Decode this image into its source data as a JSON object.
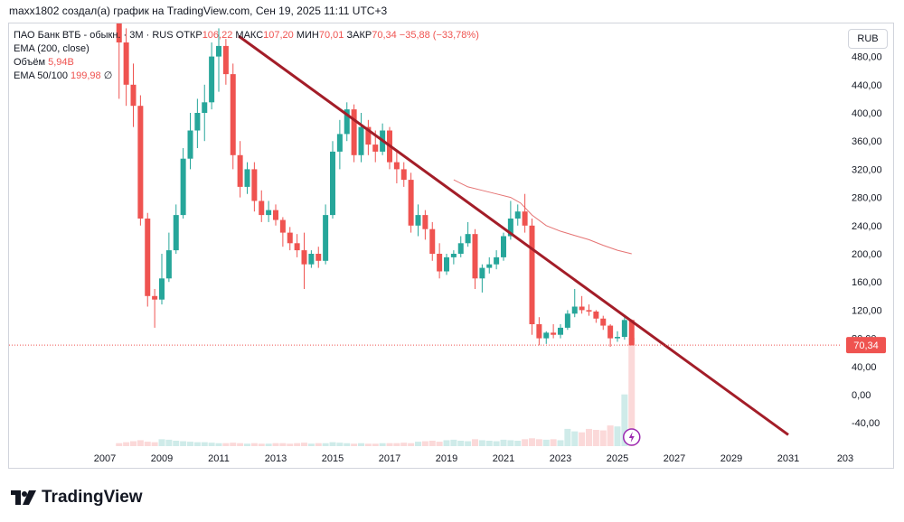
{
  "header": {
    "attribution": "maxx1802 создал(а) график на TradingView.com, Сен 19, 2025 11:11 UTC+3"
  },
  "legend": {
    "symbol": "ПАО Банк ВТБ - обыкн.",
    "interval": "3M",
    "exchange": "RUS",
    "open_label": "ОТКР",
    "open_value": "106,22",
    "high_label": "МАКС",
    "high_value": "107,20",
    "low_label": "МИН",
    "low_value": "70,01",
    "close_label": "ЗАКР",
    "close_value": "70,34",
    "change": "−35,88 (−33,78%)",
    "ema200_label": "EMA (200, close)",
    "volume_label": "Объём",
    "volume_value": "5,94B",
    "ema50_label": "EMA 50/100",
    "ema50_value": "199,98",
    "ema50_extra": "∅"
  },
  "currency_button": "RUB",
  "price_tag": "70,34",
  "logo_text": "TradingView",
  "colors": {
    "up": "#26a69a",
    "down": "#ef5350",
    "trendline": "#a31d28",
    "ema": "#e57373"
  },
  "chart_data": {
    "type": "candlestick",
    "title": "ПАО Банк ВТБ - обыкн. · 3M · RUS",
    "ylim": [
      -60,
      500
    ],
    "y_ticks": [
      "480,00",
      "440,00",
      "400,00",
      "360,00",
      "320,00",
      "280,00",
      "240,00",
      "200,00",
      "160,00",
      "120,00",
      "80,00",
      "40,00",
      "0,00",
      "-40,00"
    ],
    "x_ticks": [
      "2007",
      "2009",
      "2011",
      "2013",
      "2015",
      "2017",
      "2019",
      "2021",
      "2023",
      "2025",
      "2027",
      "2029",
      "2031",
      "203"
    ],
    "candles": [
      {
        "t": 2007.5,
        "o": 620,
        "h": 640,
        "l": 420,
        "c": 500
      },
      {
        "t": 2007.75,
        "o": 500,
        "h": 520,
        "l": 410,
        "c": 440
      },
      {
        "t": 2008.0,
        "o": 440,
        "h": 470,
        "l": 380,
        "c": 410
      },
      {
        "t": 2008.25,
        "o": 410,
        "h": 425,
        "l": 240,
        "c": 250
      },
      {
        "t": 2008.5,
        "o": 250,
        "h": 258,
        "l": 125,
        "c": 140
      },
      {
        "t": 2008.75,
        "o": 140,
        "h": 150,
        "l": 95,
        "c": 135
      },
      {
        "t": 2009.0,
        "o": 135,
        "h": 200,
        "l": 128,
        "c": 165
      },
      {
        "t": 2009.25,
        "o": 165,
        "h": 230,
        "l": 160,
        "c": 205
      },
      {
        "t": 2009.5,
        "o": 205,
        "h": 270,
        "l": 200,
        "c": 255
      },
      {
        "t": 2009.75,
        "o": 255,
        "h": 350,
        "l": 250,
        "c": 335
      },
      {
        "t": 2010.0,
        "o": 335,
        "h": 400,
        "l": 320,
        "c": 375
      },
      {
        "t": 2010.25,
        "o": 375,
        "h": 420,
        "l": 350,
        "c": 400
      },
      {
        "t": 2010.5,
        "o": 400,
        "h": 440,
        "l": 360,
        "c": 415
      },
      {
        "t": 2010.75,
        "o": 415,
        "h": 500,
        "l": 405,
        "c": 480
      },
      {
        "t": 2011.0,
        "o": 480,
        "h": 520,
        "l": 430,
        "c": 495
      },
      {
        "t": 2011.25,
        "o": 495,
        "h": 505,
        "l": 440,
        "c": 455
      },
      {
        "t": 2011.5,
        "o": 455,
        "h": 470,
        "l": 320,
        "c": 340
      },
      {
        "t": 2011.75,
        "o": 340,
        "h": 360,
        "l": 280,
        "c": 295
      },
      {
        "t": 2012.0,
        "o": 295,
        "h": 330,
        "l": 285,
        "c": 320
      },
      {
        "t": 2012.25,
        "o": 320,
        "h": 330,
        "l": 260,
        "c": 275
      },
      {
        "t": 2012.5,
        "o": 275,
        "h": 290,
        "l": 245,
        "c": 255
      },
      {
        "t": 2012.75,
        "o": 255,
        "h": 275,
        "l": 245,
        "c": 262
      },
      {
        "t": 2013.0,
        "o": 262,
        "h": 270,
        "l": 240,
        "c": 248
      },
      {
        "t": 2013.25,
        "o": 248,
        "h": 252,
        "l": 210,
        "c": 230
      },
      {
        "t": 2013.5,
        "o": 230,
        "h": 238,
        "l": 205,
        "c": 215
      },
      {
        "t": 2013.75,
        "o": 215,
        "h": 228,
        "l": 195,
        "c": 205
      },
      {
        "t": 2014.0,
        "o": 205,
        "h": 230,
        "l": 150,
        "c": 185
      },
      {
        "t": 2014.25,
        "o": 185,
        "h": 205,
        "l": 180,
        "c": 200
      },
      {
        "t": 2014.5,
        "o": 200,
        "h": 210,
        "l": 180,
        "c": 190
      },
      {
        "t": 2014.75,
        "o": 190,
        "h": 270,
        "l": 185,
        "c": 255
      },
      {
        "t": 2015.0,
        "o": 255,
        "h": 360,
        "l": 250,
        "c": 345
      },
      {
        "t": 2015.25,
        "o": 345,
        "h": 390,
        "l": 320,
        "c": 370
      },
      {
        "t": 2015.5,
        "o": 370,
        "h": 415,
        "l": 360,
        "c": 405
      },
      {
        "t": 2015.75,
        "o": 405,
        "h": 412,
        "l": 330,
        "c": 340
      },
      {
        "t": 2016.0,
        "o": 340,
        "h": 400,
        "l": 330,
        "c": 380
      },
      {
        "t": 2016.25,
        "o": 380,
        "h": 390,
        "l": 340,
        "c": 355
      },
      {
        "t": 2016.5,
        "o": 355,
        "h": 375,
        "l": 330,
        "c": 345
      },
      {
        "t": 2016.75,
        "o": 345,
        "h": 385,
        "l": 340,
        "c": 375
      },
      {
        "t": 2017.0,
        "o": 375,
        "h": 380,
        "l": 320,
        "c": 330
      },
      {
        "t": 2017.25,
        "o": 330,
        "h": 345,
        "l": 300,
        "c": 320
      },
      {
        "t": 2017.5,
        "o": 320,
        "h": 330,
        "l": 295,
        "c": 305
      },
      {
        "t": 2017.75,
        "o": 305,
        "h": 315,
        "l": 230,
        "c": 240
      },
      {
        "t": 2018.0,
        "o": 240,
        "h": 270,
        "l": 225,
        "c": 255
      },
      {
        "t": 2018.25,
        "o": 255,
        "h": 262,
        "l": 220,
        "c": 235
      },
      {
        "t": 2018.5,
        "o": 235,
        "h": 245,
        "l": 190,
        "c": 200
      },
      {
        "t": 2018.75,
        "o": 200,
        "h": 215,
        "l": 165,
        "c": 175
      },
      {
        "t": 2019.0,
        "o": 175,
        "h": 200,
        "l": 170,
        "c": 195
      },
      {
        "t": 2019.25,
        "o": 195,
        "h": 205,
        "l": 185,
        "c": 200
      },
      {
        "t": 2019.5,
        "o": 200,
        "h": 225,
        "l": 195,
        "c": 215
      },
      {
        "t": 2019.75,
        "o": 215,
        "h": 245,
        "l": 210,
        "c": 228
      },
      {
        "t": 2020.0,
        "o": 228,
        "h": 235,
        "l": 150,
        "c": 165
      },
      {
        "t": 2020.25,
        "o": 165,
        "h": 185,
        "l": 145,
        "c": 180
      },
      {
        "t": 2020.5,
        "o": 180,
        "h": 195,
        "l": 172,
        "c": 185
      },
      {
        "t": 2020.75,
        "o": 185,
        "h": 205,
        "l": 178,
        "c": 195
      },
      {
        "t": 2021.0,
        "o": 195,
        "h": 230,
        "l": 190,
        "c": 225
      },
      {
        "t": 2021.25,
        "o": 225,
        "h": 275,
        "l": 220,
        "c": 250
      },
      {
        "t": 2021.5,
        "o": 250,
        "h": 270,
        "l": 240,
        "c": 260
      },
      {
        "t": 2021.75,
        "o": 260,
        "h": 285,
        "l": 230,
        "c": 240
      },
      {
        "t": 2022.0,
        "o": 240,
        "h": 250,
        "l": 85,
        "c": 100
      },
      {
        "t": 2022.25,
        "o": 100,
        "h": 110,
        "l": 70,
        "c": 80
      },
      {
        "t": 2022.5,
        "o": 80,
        "h": 90,
        "l": 72,
        "c": 88
      },
      {
        "t": 2022.75,
        "o": 88,
        "h": 100,
        "l": 80,
        "c": 85
      },
      {
        "t": 2023.0,
        "o": 85,
        "h": 100,
        "l": 80,
        "c": 95
      },
      {
        "t": 2023.25,
        "o": 95,
        "h": 120,
        "l": 92,
        "c": 115
      },
      {
        "t": 2023.5,
        "o": 115,
        "h": 150,
        "l": 110,
        "c": 125
      },
      {
        "t": 2023.75,
        "o": 125,
        "h": 140,
        "l": 115,
        "c": 120
      },
      {
        "t": 2024.0,
        "o": 120,
        "h": 128,
        "l": 112,
        "c": 118
      },
      {
        "t": 2024.25,
        "o": 118,
        "h": 120,
        "l": 102,
        "c": 108
      },
      {
        "t": 2024.5,
        "o": 108,
        "h": 112,
        "l": 92,
        "c": 98
      },
      {
        "t": 2024.75,
        "o": 98,
        "h": 100,
        "l": 68,
        "c": 80
      },
      {
        "t": 2025.0,
        "o": 80,
        "h": 90,
        "l": 75,
        "c": 82
      },
      {
        "t": 2025.25,
        "o": 82,
        "h": 112,
        "l": 78,
        "c": 106
      },
      {
        "t": 2025.5,
        "o": 106,
        "h": 107,
        "l": 70,
        "c": 70
      }
    ],
    "volume": [
      6,
      8,
      10,
      12,
      9,
      8,
      14,
      13,
      11,
      10,
      9,
      8,
      8,
      7,
      6,
      6,
      7,
      6,
      5,
      6,
      5,
      5,
      6,
      6,
      5,
      6,
      7,
      5,
      6,
      6,
      8,
      7,
      6,
      5,
      6,
      5,
      5,
      6,
      6,
      6,
      7,
      6,
      9,
      10,
      11,
      9,
      12,
      13,
      11,
      10,
      14,
      12,
      11,
      10,
      13,
      12,
      11,
      14,
      16,
      14,
      13,
      14,
      12,
      35,
      30,
      28,
      35,
      33,
      32,
      42,
      40,
      105,
      220
    ],
    "ema_line": [
      [
        2019.25,
        305
      ],
      [
        2019.75,
        295
      ],
      [
        2020.25,
        290
      ],
      [
        2020.75,
        285
      ],
      [
        2021.25,
        280
      ],
      [
        2021.6,
        272
      ],
      [
        2022.0,
        255
      ],
      [
        2022.5,
        240
      ],
      [
        2023.0,
        232
      ],
      [
        2023.5,
        226
      ],
      [
        2024.0,
        220
      ],
      [
        2024.5,
        212
      ],
      [
        2025.0,
        205
      ],
      [
        2025.5,
        199.98
      ]
    ],
    "trendline": [
      [
        2011.7,
        509
      ],
      [
        2031.0,
        -57
      ]
    ],
    "last_price": 70.34
  }
}
